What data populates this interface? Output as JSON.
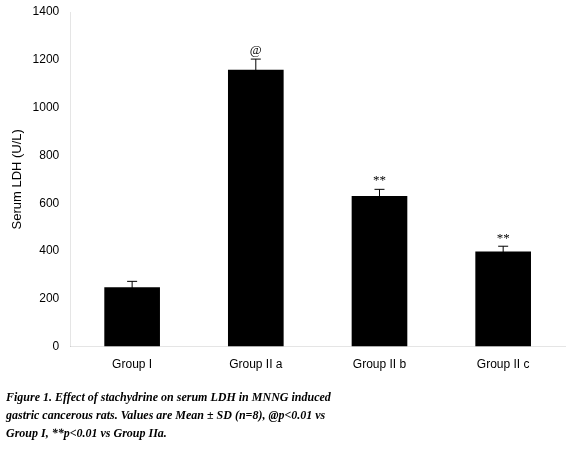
{
  "chart_data": {
    "type": "bar",
    "categories": [
      "Group I",
      "Group II a",
      "Group II b",
      "Group II c"
    ],
    "values": [
      248,
      1158,
      630,
      398
    ],
    "errors": [
      25,
      45,
      28,
      22
    ],
    "color": "#000000",
    "ylabel": "Serum LDH (U/L)",
    "ylim": [
      0,
      1400
    ],
    "yticks": [
      0,
      200,
      400,
      600,
      800,
      1000,
      1200,
      1400
    ],
    "grid": false,
    "annotations": [
      {
        "text": "@",
        "x": "Group II a",
        "y": 1212
      },
      {
        "text": "**",
        "x": "Group II b",
        "y": 666
      },
      {
        "text": "**",
        "x": "Group II c",
        "y": 426
      }
    ],
    "caption": [
      "Figure 1. Effect of stachydrine on serum LDH in MNNG induced",
      "gastric cancerous rats. Values are Mean ± SD (n=8), @p<0.01 vs",
      "Group I, **p<0.01 vs Group IIa."
    ]
  }
}
